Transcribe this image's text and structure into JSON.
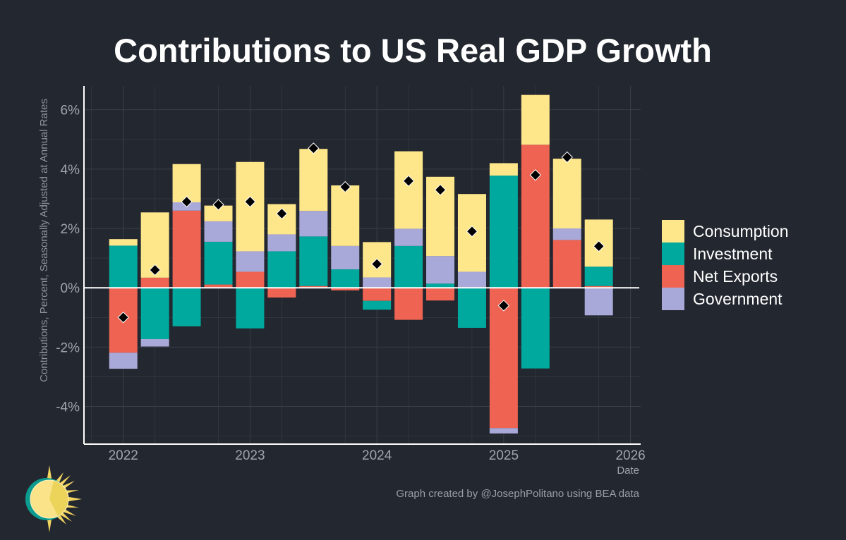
{
  "chart_data": {
    "type": "bar",
    "stacked": true,
    "title": "Contributions to US Real GDP Growth",
    "xlabel": "Date",
    "ylabel": "Contributions, Percent, Seasonally Adjusted at Annual Rates",
    "ylim": [
      -5.27,
      6.8
    ],
    "xlim": [
      2021.69,
      2026.08
    ],
    "x_ticks": [
      "2022",
      "2023",
      "2024",
      "2025",
      "2026"
    ],
    "y_ticks": [
      "6%",
      "4%",
      "2%",
      "0%",
      "-2%",
      "-4%"
    ],
    "y_tick_values": [
      6,
      4,
      2,
      0,
      -2,
      -4
    ],
    "grid": true,
    "legend_placement": "right",
    "categories": [
      "2022 Q1",
      "2022 Q2",
      "2022 Q3",
      "2022 Q4",
      "2023 Q1",
      "2023 Q2",
      "2023 Q3",
      "2023 Q4",
      "2024 Q1",
      "2024 Q2",
      "2024 Q3",
      "2024 Q4",
      "2025 Q1",
      "2025 Q2",
      "2025 Q3",
      "2025 Q4"
    ],
    "x": [
      2022.0,
      2022.25,
      2022.5,
      2022.75,
      2023.0,
      2023.25,
      2023.5,
      2023.75,
      2024.0,
      2024.25,
      2024.5,
      2024.75,
      2025.0,
      2025.25,
      2025.5,
      2025.75
    ],
    "series": [
      {
        "name": "Net Exports",
        "color": "#ee6352",
        "values": [
          -2.19,
          0.34,
          2.6,
          0.11,
          0.54,
          -0.33,
          0.06,
          -0.09,
          -0.44,
          -1.08,
          -0.43,
          0.0,
          -4.73,
          4.82,
          1.61,
          0.06
        ]
      },
      {
        "name": "Investment",
        "color": "#00a99d",
        "values": [
          1.42,
          -1.73,
          -1.3,
          1.44,
          -1.37,
          1.23,
          1.67,
          0.62,
          -0.3,
          1.41,
          0.14,
          -1.35,
          3.78,
          -2.72,
          0.0,
          0.65
        ]
      },
      {
        "name": "Government",
        "color": "#a9a9d9",
        "values": [
          -0.54,
          -0.25,
          0.28,
          0.69,
          0.69,
          0.57,
          0.86,
          0.79,
          0.35,
          0.58,
          0.93,
          0.54,
          -0.18,
          0.0,
          0.39,
          -0.93
        ]
      },
      {
        "name": "Consumption",
        "color": "#fee68a",
        "values": [
          0.22,
          2.2,
          1.29,
          0.53,
          3.01,
          1.02,
          2.09,
          2.04,
          1.19,
          2.61,
          2.67,
          2.62,
          0.42,
          1.68,
          2.35,
          1.59
        ]
      }
    ],
    "total_gdp_markers": [
      -1.0,
      0.6,
      2.9,
      2.8,
      2.9,
      2.5,
      4.7,
      3.4,
      0.8,
      3.6,
      3.3,
      1.9,
      -0.6,
      3.8,
      4.4,
      1.4
    ],
    "legend_order": [
      "Consumption",
      "Investment",
      "Net Exports",
      "Government"
    ]
  },
  "credit": "Graph created by @JosephPolitano using BEA data",
  "colors": {
    "background": "#23272f",
    "grid": "#3a3f48",
    "axis": "#ffffff",
    "tick_text": "#a0a4ab"
  }
}
